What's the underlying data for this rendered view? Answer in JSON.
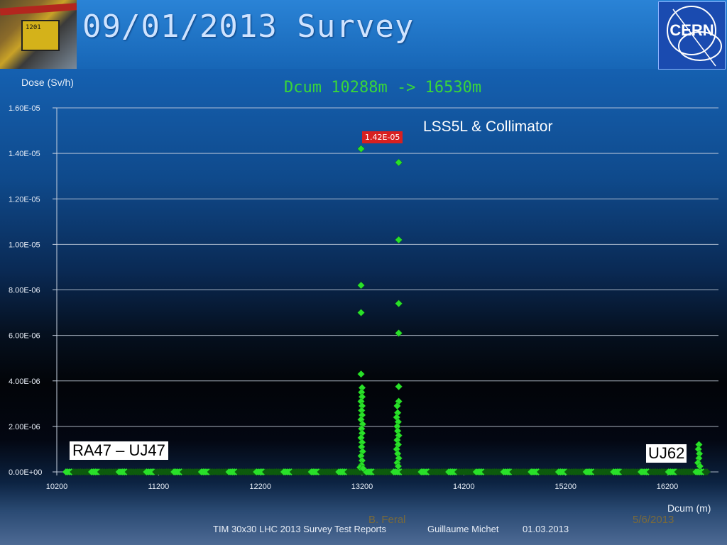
{
  "slide": {
    "title": "09/01/2013 Survey",
    "subtitle": "Dcum 10288m -> 16530m",
    "logo_text": "CERN",
    "photo_label": "1201"
  },
  "annotations": {
    "lss": "LSS5L & Collimator",
    "left": "RA47 – UJ47",
    "right": "UJ62",
    "peak": "1.42E-05"
  },
  "footer": {
    "author": "B. Feral",
    "slide_date": "5/6/2013",
    "report": "TIM 30x30 LHC 2013 Survey Test Reports",
    "presenter": "Guillaume Michet",
    "date": "01.03.2013"
  },
  "colors": {
    "marker": "#29e029",
    "marker_dark": "#0d5a0d",
    "subtitle": "#39d63a",
    "peak_label_bg": "#d82020"
  },
  "chart_data": {
    "type": "scatter",
    "ylabel": "Dose (Sv/h)",
    "xlabel": "Dcum (m)",
    "xlim": [
      10200,
      16700
    ],
    "ylim": [
      0,
      1.6e-05
    ],
    "x_ticks": [
      10200,
      11200,
      12200,
      13200,
      14200,
      15200,
      16200
    ],
    "y_ticks": [
      0,
      2e-06,
      4e-06,
      6e-06,
      8e-06,
      1e-05,
      1.2e-05,
      1.4e-05,
      1.6e-05
    ],
    "y_tick_labels": [
      "0.00E+00",
      "2.00E-06",
      "4.00E-06",
      "6.00E-06",
      "8.00E-06",
      "1.00E-05",
      "1.20E-05",
      "1.40E-05",
      "1.60E-05"
    ],
    "grid": true,
    "series": [
      {
        "points": [
          [
            13190,
            1.42e-05
          ],
          [
            13190,
            8.2e-06
          ],
          [
            13190,
            7e-06
          ],
          [
            13190,
            4.3e-06
          ],
          [
            13200,
            3.7e-06
          ],
          [
            13195,
            3.5e-06
          ],
          [
            13200,
            3.3e-06
          ],
          [
            13190,
            3.1e-06
          ],
          [
            13200,
            2.9e-06
          ],
          [
            13195,
            2.7e-06
          ],
          [
            13200,
            2.5e-06
          ],
          [
            13190,
            2.3e-06
          ],
          [
            13205,
            2.1e-06
          ],
          [
            13195,
            1.9e-06
          ],
          [
            13200,
            1.7e-06
          ],
          [
            13190,
            1.5e-06
          ],
          [
            13200,
            1.3e-06
          ],
          [
            13195,
            1.1e-06
          ],
          [
            13205,
            9e-07
          ],
          [
            13190,
            7e-07
          ],
          [
            13200,
            5e-07
          ],
          [
            13195,
            3e-07
          ],
          [
            13180,
            2e-07
          ],
          [
            13210,
            1.5e-07
          ],
          [
            13560,
            1.36e-05
          ],
          [
            13560,
            1.02e-05
          ],
          [
            13560,
            7.4e-06
          ],
          [
            13560,
            6.1e-06
          ],
          [
            13560,
            3.75e-06
          ],
          [
            13560,
            3.1e-06
          ],
          [
            13545,
            2.9e-06
          ],
          [
            13550,
            2.6e-06
          ],
          [
            13540,
            2.4e-06
          ],
          [
            13555,
            2.2e-06
          ],
          [
            13545,
            2e-06
          ],
          [
            13550,
            1.8e-06
          ],
          [
            13560,
            1.6e-06
          ],
          [
            13545,
            1.4e-06
          ],
          [
            13555,
            1.2e-06
          ],
          [
            13540,
            1e-06
          ],
          [
            13550,
            8e-07
          ],
          [
            13560,
            6e-07
          ],
          [
            13545,
            4e-07
          ],
          [
            13555,
            2.5e-07
          ],
          [
            16510,
            1.2e-06
          ],
          [
            16505,
            1e-06
          ],
          [
            16515,
            8e-07
          ],
          [
            16510,
            6e-07
          ],
          [
            16500,
            4e-07
          ],
          [
            16520,
            2.5e-07
          ]
        ]
      }
    ]
  }
}
